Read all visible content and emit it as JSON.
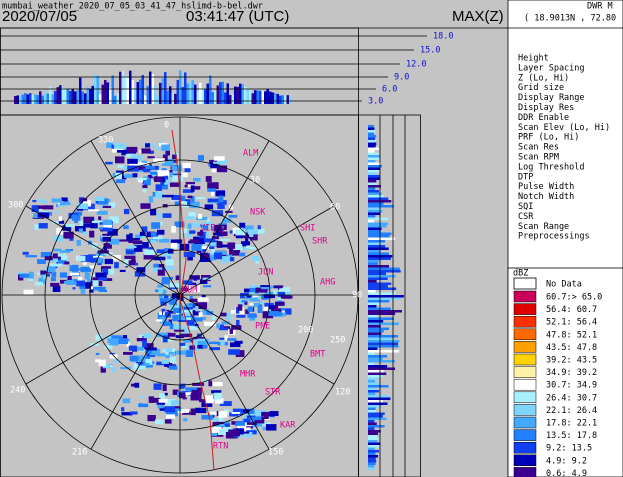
{
  "header": {
    "filename": "mumbai_weather_2020_07_05_03_41_47_hslimd-b-bel.dwr",
    "date": "2020/07/05",
    "time": "03:41:47 (UTC)",
    "product": "MAX(Z)"
  },
  "info_panel": {
    "title": "DWR M",
    "location": "( 18.9013N , 72.80",
    "parameters": [
      "Height",
      "Layer Spacing",
      "Z (Lo, Hi)",
      "Grid size",
      "Display Range",
      "Display Res",
      "DDR Enable",
      "Scan Elev (Lo, Hi)",
      "PRF (Lo, Hi)",
      "Scan Res",
      "Scan RPM",
      "Log Threshold",
      "DTP",
      "Pulse Width",
      "Notch Width",
      "SQI",
      "CSR",
      "Scan Range",
      "Preprocessings"
    ]
  },
  "height_scale": [
    "18.0",
    "15.0",
    "12.0",
    "9.0",
    "6.0",
    "3.0"
  ],
  "azimuth_labels": [
    "0",
    "30",
    "60",
    "90",
    "120",
    "150",
    "210",
    "240",
    "300",
    "330"
  ],
  "range_labels": [
    "250",
    "200"
  ],
  "stations": [
    "ALM",
    "NSK",
    "VIE",
    "SHI",
    "SHR",
    "JUN",
    "AHG",
    "MUM",
    "PNE",
    "BMT",
    "MHR",
    "STR",
    "KAR",
    "RTN"
  ],
  "legend": {
    "unit": "dBZ",
    "no_data": "No Data",
    "rows": [
      {
        "range": "60.7:> 65.0",
        "color": "#c8005a"
      },
      {
        "range": "56.4: 60.7",
        "color": "#e00000"
      },
      {
        "range": "52.1: 56.4",
        "color": "#ff3000"
      },
      {
        "range": "47.8: 52.1",
        "color": "#ff6a00"
      },
      {
        "range": "43.5: 47.8",
        "color": "#ffa000"
      },
      {
        "range": "39.2: 43.5",
        "color": "#ffd200"
      },
      {
        "range": "34.9: 39.2",
        "color": "#fff2a8"
      },
      {
        "range": "30.7: 34.9",
        "color": "#ffffff"
      },
      {
        "range": "26.4: 30.7",
        "color": "#a8f0ff"
      },
      {
        "range": "22.1: 26.4",
        "color": "#7ed6ff"
      },
      {
        "range": "17.8: 22.1",
        "color": "#44a8ff"
      },
      {
        "range": "13.5: 17.8",
        "color": "#2280ff"
      },
      {
        "range": "9.2: 13.5",
        "color": "#1040f0"
      },
      {
        "range": "4.9: 9.2",
        "color": "#0000b8"
      },
      {
        "range": "0.6: 4.9",
        "color": "#3a0090"
      }
    ]
  }
}
